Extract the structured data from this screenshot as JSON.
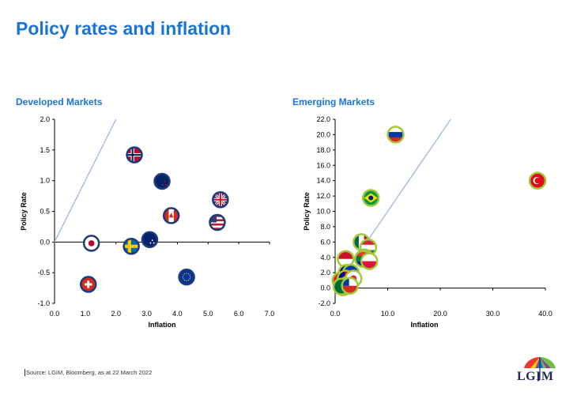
{
  "page": {
    "title": "Policy rates and inflation",
    "source": "Source: LGIM,  Bloomberg, as at 22 March 2022",
    "logo_text": "LGIM"
  },
  "chart_data": [
    {
      "id": "developed",
      "type": "scatter",
      "title": "Developed Markets",
      "xlabel": "Inflation",
      "ylabel": "Policy Rate",
      "xlim": [
        0,
        7
      ],
      "ylim": [
        -1,
        2
      ],
      "xticks": [
        "0.0",
        "1.0",
        "2.0",
        "3.0",
        "4.0",
        "5.0",
        "6.0",
        "7.0"
      ],
      "yticks": [
        "-1.0",
        "-0.5",
        "0.0",
        "0.5",
        "1.0",
        "1.5",
        "2.0"
      ],
      "reference_line": {
        "x": [
          0,
          2
        ],
        "y": [
          0,
          2
        ]
      },
      "points": [
        {
          "flag": "norway-flag",
          "x": 2.6,
          "y": 1.42
        },
        {
          "flag": "new-zealand-flag",
          "x": 3.5,
          "y": 0.99
        },
        {
          "flag": "uk-flag",
          "x": 5.4,
          "y": 0.69
        },
        {
          "flag": "canada-flag",
          "x": 3.8,
          "y": 0.43
        },
        {
          "flag": "usa-flag",
          "x": 5.3,
          "y": 0.32
        },
        {
          "flag": "australia-flag",
          "x": 3.1,
          "y": 0.04
        },
        {
          "flag": "sweden-flag",
          "x": 2.5,
          "y": -0.07
        },
        {
          "flag": "japan-flag",
          "x": 1.2,
          "y": -0.02
        },
        {
          "flag": "eurozone-flag",
          "x": 4.3,
          "y": -0.57
        },
        {
          "flag": "switzerland-flag",
          "x": 1.1,
          "y": -0.69
        }
      ]
    },
    {
      "id": "emerging",
      "type": "scatter",
      "title": "Emerging Markets",
      "xlabel": "Inflation",
      "ylabel": "Policy Rate",
      "xlim": [
        0,
        40
      ],
      "ylim": [
        -2,
        22
      ],
      "xticks": [
        "0.0",
        "10.0",
        "20.0",
        "30.0",
        "40.0"
      ],
      "yticks": [
        "-2.0",
        "0.0",
        "2.0",
        "4.0",
        "6.0",
        "8.0",
        "10.0",
        "12.0",
        "14.0",
        "16.0",
        "18.0",
        "20.0",
        "22.0"
      ],
      "reference_line": {
        "x": [
          0,
          22
        ],
        "y": [
          0,
          22
        ]
      },
      "points": [
        {
          "flag": "russia-flag",
          "x": 11.5,
          "y": 20.0
        },
        {
          "flag": "turkey-flag",
          "x": 38.5,
          "y": 14.0
        },
        {
          "flag": "brazil-flag",
          "x": 6.8,
          "y": 11.75
        },
        {
          "flag": "mexico-flag",
          "x": 5.0,
          "y": 6.0
        },
        {
          "flag": "hungary-flag",
          "x": 6.3,
          "y": 5.3
        },
        {
          "flag": "india-flag",
          "x": 5.6,
          "y": 4.0
        },
        {
          "flag": "south-africa-flag",
          "x": 5.3,
          "y": 3.8
        },
        {
          "flag": "indonesia-flag",
          "x": 2.0,
          "y": 3.8
        },
        {
          "flag": "poland-flag",
          "x": 6.5,
          "y": 3.5
        },
        {
          "flag": "malaysia-flag",
          "x": 2.2,
          "y": 2.0
        },
        {
          "flag": "philippines-flag",
          "x": 3.0,
          "y": 2.0
        },
        {
          "flag": "china-flag",
          "x": 1.0,
          "y": 1.0
        },
        {
          "flag": "taiwan-flag",
          "x": 2.0,
          "y": 1.25
        },
        {
          "flag": "thailand-flag",
          "x": 2.5,
          "y": 0.5
        },
        {
          "flag": "korea-flag",
          "x": 3.5,
          "y": 1.25
        },
        {
          "flag": "israel-flag",
          "x": 1.5,
          "y": 0.1
        },
        {
          "flag": "saudi-arabia-flag",
          "x": 1.2,
          "y": 0.2
        },
        {
          "flag": "chile-flag",
          "x": 2.8,
          "y": 0.3
        }
      ]
    }
  ]
}
